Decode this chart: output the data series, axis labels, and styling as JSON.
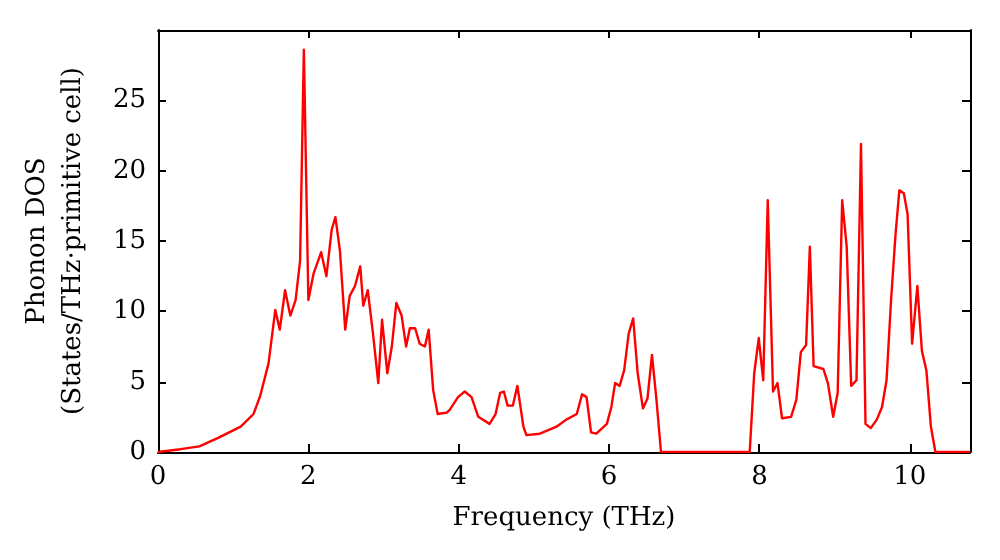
{
  "chart_data": {
    "type": "line",
    "xlabel": "Frequency (THz)",
    "ylabel": "Phonon DOS\n(States/THz·primitive cell)",
    "xlim": [
      0,
      10.8
    ],
    "xticks": [
      0,
      2,
      4,
      6,
      8,
      10
    ],
    "ylim": [
      0,
      30
    ],
    "yticks": [
      0,
      5,
      10,
      15,
      20,
      25
    ],
    "grid": false,
    "marker": "none",
    "line_style": "solid",
    "series": [
      {
        "color": "#ff0000",
        "x": [
          0,
          0.3,
          0.55,
          0.8,
          1.1,
          1.27,
          1.36,
          1.47,
          1.56,
          1.62,
          1.69,
          1.76,
          1.83,
          1.89,
          1.94,
          2.0,
          2.07,
          2.17,
          2.24,
          2.31,
          2.36,
          2.42,
          2.49,
          2.55,
          2.62,
          2.69,
          2.73,
          2.79,
          2.86,
          2.93,
          2.98,
          3.05,
          3.11,
          3.17,
          3.24,
          3.3,
          3.35,
          3.42,
          3.48,
          3.55,
          3.6,
          3.66,
          3.72,
          3.84,
          3.88,
          3.99,
          4.08,
          4.17,
          4.26,
          4.41,
          4.49,
          4.55,
          4.6,
          4.65,
          4.72,
          4.78,
          4.86,
          4.9,
          5.08,
          5.3,
          5.43,
          5.57,
          5.64,
          5.7,
          5.76,
          5.83,
          5.97,
          6.03,
          6.08,
          6.14,
          6.2,
          6.26,
          6.32,
          6.38,
          6.45,
          6.51,
          6.57,
          6.63,
          6.69,
          7.87,
          7.93,
          7.99,
          8.05,
          8.11,
          8.18,
          8.24,
          8.3,
          8.42,
          8.49,
          8.55,
          8.62,
          8.67,
          8.72,
          8.85,
          8.91,
          8.98,
          9.04,
          9.1,
          9.16,
          9.22,
          9.29,
          9.35,
          9.41,
          9.48,
          9.56,
          9.63,
          9.69,
          9.75,
          9.81,
          9.86,
          9.92,
          9.97,
          10.03,
          10.1,
          10.16,
          10.22,
          10.28,
          10.34,
          10.8
        ],
        "values": [
          0,
          0.2,
          0.4,
          1,
          1.8,
          2.7,
          4.0,
          6.3,
          10.1,
          8.7,
          11.5,
          9.7,
          10.8,
          13.6,
          28.6,
          10.8,
          12.7,
          14.2,
          12.5,
          15.8,
          16.7,
          14.3,
          8.7,
          11.1,
          11.8,
          13.2,
          10.4,
          11.5,
          8.4,
          4.9,
          9.4,
          5.6,
          7.5,
          10.6,
          9.7,
          7.5,
          8.8,
          8.8,
          7.7,
          7.5,
          8.7,
          4.4,
          2.7,
          2.8,
          3.0,
          3.9,
          4.3,
          3.9,
          2.5,
          2.0,
          2.7,
          4.2,
          4.3,
          3.3,
          3.3,
          4.7,
          1.8,
          1.2,
          1.3,
          1.8,
          2.3,
          2.7,
          4.1,
          3.9,
          1.4,
          1.3,
          2.0,
          3.2,
          4.9,
          4.7,
          5.8,
          8.4,
          9.5,
          5.6,
          3.1,
          3.8,
          6.9,
          3.7,
          0,
          0,
          5.6,
          8.1,
          5.1,
          17.9,
          4.3,
          4.9,
          2.4,
          2.5,
          3.7,
          7.1,
          7.6,
          14.6,
          6.1,
          5.9,
          4.9,
          2.5,
          4.2,
          17.9,
          14.6,
          4.7,
          5.1,
          21.9,
          2.0,
          1.7,
          2.3,
          3.2,
          5.1,
          10.8,
          15.5,
          18.6,
          18.4,
          16.9,
          7.7,
          11.8,
          7.2,
          5.8,
          1.8,
          0,
          0
        ]
      }
    ]
  }
}
